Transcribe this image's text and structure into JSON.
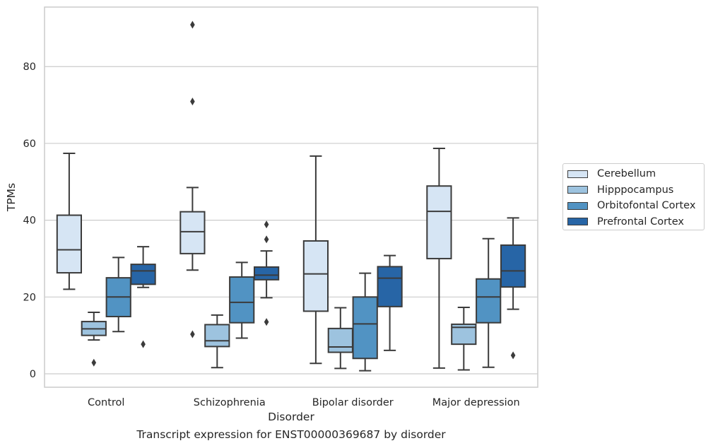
{
  "caption": "Transcript expression for ENST00000369687 by disorder",
  "chart_data": {
    "type": "box",
    "title": "",
    "xlabel": "Disorder",
    "ylabel": "TPMs",
    "categories": [
      "Control",
      "Schizophrenia",
      "Bipolar disorder",
      "Major depression"
    ],
    "ylim": [
      -3.5,
      95.5
    ],
    "yticks": [
      0,
      20,
      40,
      60,
      80
    ],
    "grid": "horizontal",
    "legend_position": "right",
    "series": [
      {
        "name": "Cerebellum",
        "color": "#d6e5f4",
        "boxes": [
          {
            "whislo": 22,
            "q1": 26.3,
            "med": 32.3,
            "q3": 41.3,
            "whishi": 57.4,
            "fliers": []
          },
          {
            "whislo": 27,
            "q1": 31.3,
            "med": 37,
            "q3": 42.2,
            "whishi": 48.5,
            "fliers": [
              10.3,
              70.9,
              90.9
            ]
          },
          {
            "whislo": 2.7,
            "q1": 16.3,
            "med": 26,
            "q3": 34.6,
            "whishi": 56.7,
            "fliers": []
          },
          {
            "whislo": 1.5,
            "q1": 30,
            "med": 42.3,
            "q3": 48.9,
            "whishi": 58.7,
            "fliers": []
          }
        ]
      },
      {
        "name": "Hipppocampus",
        "color": "#9dc3df",
        "boxes": [
          {
            "whislo": 8.8,
            "q1": 10,
            "med": 11.7,
            "q3": 13.6,
            "whishi": 16,
            "fliers": [
              2.9
            ]
          },
          {
            "whislo": 1.6,
            "q1": 7.1,
            "med": 8.6,
            "q3": 12.8,
            "whishi": 15.3,
            "fliers": []
          },
          {
            "whislo": 1.4,
            "q1": 5.6,
            "med": 7,
            "q3": 11.8,
            "whishi": 17.2,
            "fliers": []
          },
          {
            "whislo": 1,
            "q1": 7.7,
            "med": 12.1,
            "q3": 12.9,
            "whishi": 17.3,
            "fliers": []
          }
        ]
      },
      {
        "name": "Orbitofontal Cortex",
        "color": "#5193c3",
        "boxes": [
          {
            "whislo": 11,
            "q1": 14.9,
            "med": 20,
            "q3": 25,
            "whishi": 30.3,
            "fliers": []
          },
          {
            "whislo": 9.3,
            "q1": 13.3,
            "med": 18.6,
            "q3": 25.2,
            "whishi": 29,
            "fliers": []
          },
          {
            "whislo": 0.8,
            "q1": 4,
            "med": 13,
            "q3": 20,
            "whishi": 26.2,
            "fliers": []
          },
          {
            "whislo": 1.7,
            "q1": 13.3,
            "med": 20,
            "q3": 24.7,
            "whishi": 35.2,
            "fliers": []
          }
        ]
      },
      {
        "name": "Prefrontal Cortex",
        "color": "#2765a6",
        "boxes": [
          {
            "whislo": 22.5,
            "q1": 23.3,
            "med": 26.8,
            "q3": 28.5,
            "whishi": 33.1,
            "fliers": [
              7.7
            ]
          },
          {
            "whislo": 19.8,
            "q1": 24.5,
            "med": 25.7,
            "q3": 27.8,
            "whishi": 32,
            "fliers": [
              13.5,
              35,
              38.9
            ]
          },
          {
            "whislo": 6.1,
            "q1": 17.5,
            "med": 24.9,
            "q3": 27.9,
            "whishi": 30.8,
            "fliers": []
          },
          {
            "whislo": 16.8,
            "q1": 22.6,
            "med": 26.8,
            "q3": 33.5,
            "whishi": 40.6,
            "fliers": [
              4.8
            ]
          }
        ]
      }
    ]
  }
}
